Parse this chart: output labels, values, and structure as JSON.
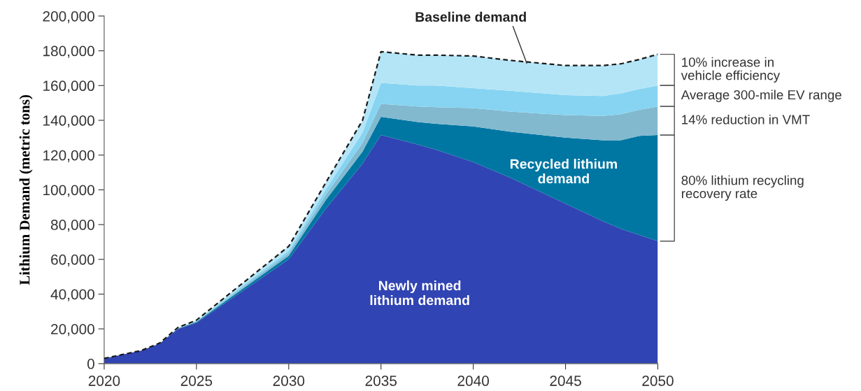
{
  "chart_data": {
    "type": "area",
    "stacked": true,
    "ylabel": "Lithium Demand (metric tons)",
    "x": [
      2020,
      2022,
      2023,
      2024,
      2025,
      2030,
      2032,
      2034,
      2035,
      2037,
      2038,
      2040,
      2042,
      2045,
      2047,
      2048,
      2049,
      2050
    ],
    "series": [
      {
        "color": "#3144b3",
        "values": [
          3000,
          7500,
          11500,
          20000,
          23500,
          60000,
          89000,
          115000,
          131500,
          126000,
          123000,
          116000,
          107000,
          92000,
          82000,
          77500,
          74000,
          70500
        ]
      },
      {
        "name": "80% lithium recycling\nrecovery rate",
        "color": "#0077a3",
        "values": [
          0,
          0,
          0,
          200,
          500,
          2000,
          5000,
          7000,
          10500,
          13000,
          15000,
          20500,
          26500,
          38000,
          46500,
          51000,
          57000,
          61000
        ]
      },
      {
        "name": "14% reduction in VMT",
        "color": "#82b9cf",
        "values": [
          0,
          0,
          100,
          200,
          300,
          1500,
          3000,
          5000,
          7500,
          9000,
          9500,
          10500,
          11500,
          13000,
          14000,
          15000,
          15000,
          16500
        ]
      },
      {
        "name": "Average 300-mile EV range",
        "color": "#86d4f2",
        "values": [
          0,
          0,
          100,
          200,
          300,
          1500,
          3000,
          6000,
          12000,
          12000,
          12500,
          11500,
          12000,
          11500,
          11500,
          12000,
          12000,
          12000
        ]
      },
      {
        "name": "10% increase in\nvehicle efficiency",
        "color": "#b4e5f7",
        "line_style": "dashed",
        "values": [
          0,
          0,
          100,
          200,
          400,
          2500,
          4000,
          7000,
          18000,
          17500,
          17500,
          18500,
          17500,
          17000,
          17500,
          17000,
          17000,
          18000
        ]
      }
    ],
    "annotations": [
      {
        "text": "Baseline demand",
        "x": 2042.9,
        "y": 172800
      },
      "Recycled lithium\ndemand",
      "Newly mined\nlithium demand"
    ],
    "xlim": [
      2020,
      2050
    ],
    "xticks": [
      2020,
      2025,
      2030,
      2035,
      2040,
      2045,
      2050
    ],
    "ylim": [
      0,
      200000
    ],
    "yticks": [
      {
        "value": 0,
        "label": "0"
      },
      {
        "value": 20000,
        "label": "20,000"
      },
      {
        "value": 40000,
        "label": "40,000"
      },
      {
        "value": 60000,
        "label": "60,000"
      },
      {
        "value": 80000,
        "label": "80,000"
      },
      {
        "value": 100000,
        "label": "100,000"
      },
      {
        "value": 120000,
        "label": "120,000"
      },
      {
        "value": 140000,
        "label": "140,000"
      },
      {
        "value": 160000,
        "label": "160,000"
      },
      {
        "value": 180000,
        "label": "180,000"
      },
      {
        "value": 200000,
        "label": "200,000"
      }
    ],
    "grid": false
  }
}
